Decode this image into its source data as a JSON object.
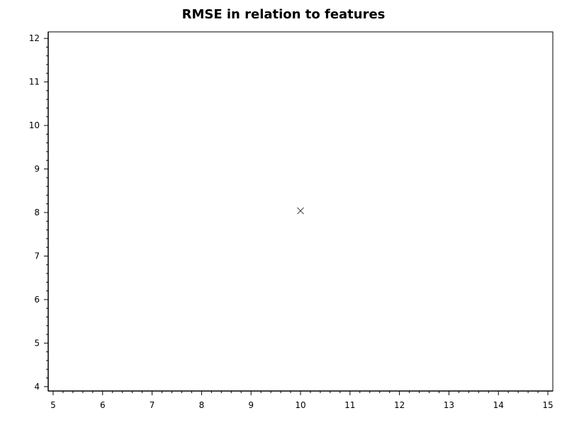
{
  "chart_data": {
    "type": "scatter",
    "title": "RMSE in relation to features",
    "xlabel": "",
    "ylabel": "",
    "xlim": [
      4.9,
      15.1
    ],
    "ylim": [
      3.9,
      12.15
    ],
    "xticks": [
      5,
      6,
      7,
      8,
      9,
      10,
      11,
      12,
      13,
      14,
      15
    ],
    "yticks": [
      4,
      5,
      6,
      7,
      8,
      9,
      10,
      11,
      12
    ],
    "minor_per_major": 5,
    "grid": false,
    "marker": "x",
    "series": [
      {
        "x": [
          10
        ],
        "y": [
          8.04
        ]
      }
    ],
    "colors": {
      "axis": "#000000",
      "marker": "#333333"
    }
  }
}
